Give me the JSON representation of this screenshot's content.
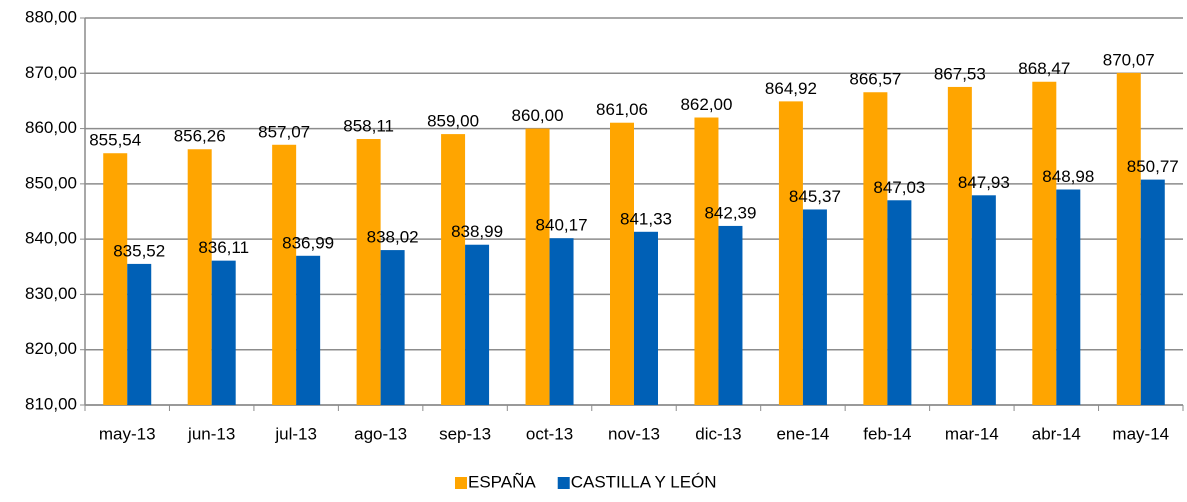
{
  "chart_data": {
    "type": "bar",
    "categories": [
      "may-13",
      "jun-13",
      "jul-13",
      "ago-13",
      "sep-13",
      "oct-13",
      "nov-13",
      "dic-13",
      "ene-14",
      "feb-14",
      "mar-14",
      "abr-14",
      "may-14"
    ],
    "series": [
      {
        "name": "ESPAÑA",
        "color": "#ffa500",
        "values": [
          855.54,
          856.26,
          857.07,
          858.11,
          859.0,
          860.0,
          861.06,
          862.0,
          864.92,
          866.57,
          867.53,
          868.47,
          870.07
        ],
        "value_labels": [
          "855,54",
          "856,26",
          "857,07",
          "858,11",
          "859,00",
          "860,00",
          "861,06",
          "862,00",
          "864,92",
          "866,57",
          "867,53",
          "868,47",
          "870,07"
        ]
      },
      {
        "name": "CASTILLA Y LEÓN",
        "color": "#0060b6",
        "values": [
          835.52,
          836.11,
          836.99,
          838.02,
          838.99,
          840.17,
          841.33,
          842.39,
          845.37,
          847.03,
          847.93,
          848.98,
          850.77
        ],
        "value_labels": [
          "835,52",
          "836,11",
          "836,99",
          "838,02",
          "838,99",
          "840,17",
          "841,33",
          "842,39",
          "845,37",
          "847,03",
          "847,93",
          "848,98",
          "850,77"
        ]
      }
    ],
    "ylim": [
      810,
      880
    ],
    "yticks": [
      {
        "value": 810,
        "label": "810,00"
      },
      {
        "value": 820,
        "label": "820,00"
      },
      {
        "value": 830,
        "label": "830,00"
      },
      {
        "value": 840,
        "label": "840,00"
      },
      {
        "value": 850,
        "label": "850,00"
      },
      {
        "value": 860,
        "label": "860,00"
      },
      {
        "value": 870,
        "label": "870,00"
      },
      {
        "value": 880,
        "label": "880,00"
      }
    ],
    "grid": true,
    "legend": "bottom"
  }
}
